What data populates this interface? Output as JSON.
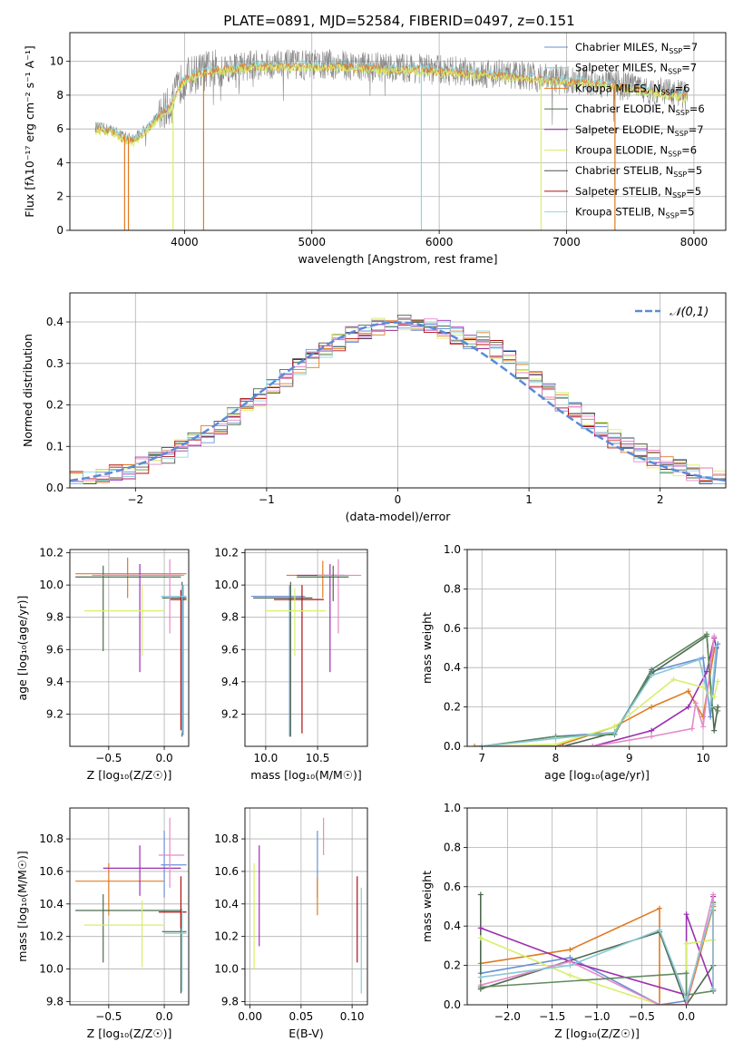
{
  "title": "PLATE=0891, MJD=52584, FIBERID=0497, z=0.151",
  "colors": {
    "s1": "#6a8fd6",
    "s2": "#8ac8d6",
    "s3": "#e07b22",
    "s4": "#4e6a4e",
    "s5": "#9b2fb0",
    "s6": "#d7ef6a",
    "s7": "#505050",
    "s8": "#b01010",
    "s9": "#8fd8e0",
    "pink": "#e48ac8",
    "green": "#5f8a5f",
    "gray": "#888888",
    "normal": "#5b8bd9"
  },
  "chart_data": [
    {
      "id": "spectrum",
      "type": "line",
      "xlabel": "wavelength [Angstrom, rest frame]",
      "ylabel": "Flux [fλ10⁻¹⁷ erg cm⁻² s⁻¹ A⁻¹]",
      "xlim": [
        3100,
        8250
      ],
      "ylim": [
        0,
        11.7
      ],
      "xticks": [
        4000,
        5000,
        6000,
        7000,
        8000
      ],
      "yticks": [
        0,
        2,
        4,
        6,
        8,
        10
      ],
      "legend_position": "right",
      "series": [
        {
          "name": "Chabrier MILES, N",
          "sub": "SSP",
          "suffix": "=7",
          "color": "#6a8fd6"
        },
        {
          "name": "Salpeter MILES, N",
          "sub": "SSP",
          "suffix": "=7",
          "color": "#8ac8d6"
        },
        {
          "name": "Kroupa MILES, N",
          "sub": "SSP",
          "suffix": "=6",
          "color": "#e07b22"
        },
        {
          "name": "Chabrier ELODIE, N",
          "sub": "SSP",
          "suffix": "=6",
          "color": "#4e6a4e"
        },
        {
          "name": "Salpeter ELODIE, N",
          "sub": "SSP",
          "suffix": "=7",
          "color": "#9b2fb0"
        },
        {
          "name": "Kroupa ELODIE, N",
          "sub": "SSP",
          "suffix": "=6",
          "color": "#d7ef6a"
        },
        {
          "name": "Chabrier STELIB, N",
          "sub": "SSP",
          "suffix": "=5",
          "color": "#505050"
        },
        {
          "name": "Salpeter STELIB, N",
          "sub": "SSP",
          "suffix": "=5",
          "color": "#b01010"
        },
        {
          "name": "Kroupa STELIB, N",
          "sub": "SSP",
          "suffix": "=5",
          "color": "#8fd8e0"
        }
      ],
      "continuum": {
        "x": [
          3300,
          3450,
          3500,
          3600,
          3700,
          3800,
          3900,
          3950,
          4000,
          4100,
          4200,
          4400,
          4600,
          4800,
          5000,
          5200,
          5400,
          5600,
          5800,
          6000,
          6200,
          6400,
          6600,
          6800,
          7000,
          7200,
          7400,
          7600,
          7800,
          7950
        ],
        "y": [
          6.1,
          5.9,
          5.6,
          5.4,
          6.0,
          6.8,
          7.5,
          8.4,
          9.0,
          9.3,
          9.5,
          9.7,
          9.8,
          9.8,
          9.8,
          9.8,
          9.7,
          9.6,
          9.6,
          9.5,
          9.4,
          9.3,
          9.2,
          9.0,
          8.9,
          8.8,
          8.6,
          8.4,
          8.1,
          8.0
        ]
      },
      "dips": [
        {
          "x": 3530,
          "color": "#e07b22"
        },
        {
          "x": 3560,
          "color": "#e07b22"
        },
        {
          "x": 3910,
          "color": "#d7ef6a"
        },
        {
          "x": 4150,
          "color": "#e07b22"
        },
        {
          "x": 5860,
          "color": "#8fd8e0"
        },
        {
          "x": 6800,
          "color": "#d7ef6a"
        },
        {
          "x": 7380,
          "color": "#e07b22"
        }
      ]
    },
    {
      "id": "residuals",
      "type": "step",
      "xlabel": "(data-model)/error",
      "ylabel": "Normed distribution",
      "xlim": [
        -2.5,
        2.5
      ],
      "ylim": [
        0,
        0.47
      ],
      "xticks": [
        -2,
        -1,
        0,
        1,
        2
      ],
      "yticks": [
        0.0,
        0.1,
        0.2,
        0.3,
        0.4
      ],
      "legend_position": "top-right",
      "normal_label": "𝒩(0,1)",
      "bin_width": 0.1
    },
    {
      "id": "age_vs_Z",
      "type": "errorbar",
      "xlabel": "Z [log₁₀(Z/Z☉)]",
      "ylabel": "age  [log₁₀(age/yr)]",
      "xlim": [
        -0.85,
        0.22
      ],
      "ylim": [
        9.0,
        10.22
      ],
      "xticks": [
        -0.5,
        0.0
      ],
      "yticks": [
        9.2,
        9.4,
        9.6,
        9.8,
        10.0,
        10.2
      ],
      "points": [
        {
          "x": 0.17,
          "y": 9.93,
          "xlo": 0.12,
          "xhi": 0.2,
          "ylo": 9.07,
          "yhi": 10.0,
          "color": "#6a8fd6"
        },
        {
          "x": 0.16,
          "y": 9.92,
          "xlo": -0.02,
          "xhi": 0.2,
          "ylo": 9.06,
          "yhi": 10.02,
          "color": "#4e6a4e"
        },
        {
          "x": 0.15,
          "y": 9.91,
          "xlo": 0.05,
          "xhi": 0.2,
          "ylo": 9.1,
          "yhi": 9.97,
          "color": "#b01010"
        },
        {
          "x": -0.33,
          "y": 10.07,
          "xlo": -0.8,
          "xhi": 0.2,
          "ylo": 9.92,
          "yhi": 10.17,
          "color": "#e07b22"
        },
        {
          "x": -0.55,
          "y": 10.05,
          "xlo": -0.8,
          "xhi": 0.15,
          "ylo": 9.59,
          "yhi": 10.12,
          "color": "#4e6a4e"
        },
        {
          "x": -0.22,
          "y": 10.06,
          "xlo": -0.55,
          "xhi": 0.15,
          "ylo": 9.46,
          "yhi": 10.13,
          "color": "#9b2fb0"
        },
        {
          "x": 0.05,
          "y": 10.06,
          "xlo": -0.65,
          "xhi": 0.18,
          "ylo": 9.7,
          "yhi": 10.16,
          "color": "#e48ac8"
        },
        {
          "x": -0.2,
          "y": 9.84,
          "xlo": -0.72,
          "xhi": 0.0,
          "ylo": 9.56,
          "yhi": 10.0,
          "color": "#d7ef6a"
        },
        {
          "x": 0.16,
          "y": 9.93,
          "xlo": -0.03,
          "xhi": 0.2,
          "ylo": 9.08,
          "yhi": 10.0,
          "color": "#8ac8d6"
        }
      ]
    },
    {
      "id": "age_vs_mass",
      "type": "errorbar",
      "xlabel": "mass [log₁₀(M/M☉)]",
      "ylabel": "",
      "xlim": [
        9.8,
        10.98
      ],
      "ylim": [
        9.0,
        10.22
      ],
      "xticks": [
        10.0,
        10.5
      ],
      "yticks": [
        9.2,
        9.4,
        9.6,
        9.8,
        10.0,
        10.2
      ],
      "points": [
        {
          "x": 10.23,
          "y": 9.93,
          "xlo": 9.86,
          "xhi": 10.38,
          "ylo": 9.06,
          "yhi": 10.0,
          "color": "#6a8fd6"
        },
        {
          "x": 10.24,
          "y": 9.92,
          "xlo": 9.88,
          "xhi": 10.45,
          "ylo": 9.06,
          "yhi": 10.02,
          "color": "#4e6a4e"
        },
        {
          "x": 10.35,
          "y": 9.91,
          "xlo": 10.08,
          "xhi": 10.56,
          "ylo": 9.08,
          "yhi": 10.0,
          "color": "#b01010"
        },
        {
          "x": 10.55,
          "y": 10.06,
          "xlo": 10.2,
          "xhi": 10.7,
          "ylo": 9.92,
          "yhi": 10.15,
          "color": "#e07b22"
        },
        {
          "x": 10.62,
          "y": 10.06,
          "xlo": 10.3,
          "xhi": 10.76,
          "ylo": 9.46,
          "yhi": 10.13,
          "color": "#9b2fb0"
        },
        {
          "x": 10.7,
          "y": 10.06,
          "xlo": 10.5,
          "xhi": 10.92,
          "ylo": 9.7,
          "yhi": 10.16,
          "color": "#e48ac8"
        },
        {
          "x": 10.28,
          "y": 9.84,
          "xlo": 10.0,
          "xhi": 10.58,
          "ylo": 9.56,
          "yhi": 9.98,
          "color": "#d7ef6a"
        },
        {
          "x": 10.65,
          "y": 10.05,
          "xlo": 10.3,
          "xhi": 10.8,
          "ylo": 9.9,
          "yhi": 10.12,
          "color": "#4e6a4e"
        }
      ]
    },
    {
      "id": "weight_vs_age",
      "type": "line",
      "xlabel": "age  [log₁₀(age/yr)]",
      "ylabel": "mass weight",
      "xlim": [
        6.8,
        10.32
      ],
      "ylim": [
        0,
        1.0
      ],
      "xticks": [
        7,
        8,
        9,
        10
      ],
      "yticks": [
        0.0,
        0.2,
        0.4,
        0.6,
        0.8,
        1.0
      ],
      "series": [
        {
          "color": "#6a8fd6",
          "x": [
            7.0,
            8.0,
            8.8,
            9.3,
            10.0,
            10.1,
            10.2
          ],
          "y": [
            0.0,
            0.05,
            0.07,
            0.38,
            0.45,
            0.15,
            0.52
          ]
        },
        {
          "color": "#e07b22",
          "x": [
            6.9,
            8.0,
            8.8,
            9.3,
            9.8,
            10.0,
            10.15
          ],
          "y": [
            0.0,
            0.0,
            0.1,
            0.2,
            0.28,
            0.15,
            0.49
          ]
        },
        {
          "color": "#4e6a4e",
          "x": [
            7.0,
            8.1,
            8.8,
            9.3,
            10.05,
            10.15,
            10.2
          ],
          "y": [
            0.0,
            0.0,
            0.07,
            0.37,
            0.56,
            0.08,
            0.2
          ]
        },
        {
          "color": "#9b2fb0",
          "x": [
            7.0,
            8.5,
            9.3,
            9.8,
            10.05,
            10.15,
            10.18
          ],
          "y": [
            0.0,
            0.0,
            0.08,
            0.2,
            0.38,
            0.55,
            0.5
          ]
        },
        {
          "color": "#d7ef6a",
          "x": [
            7.0,
            8.0,
            8.8,
            9.6,
            10.0,
            10.15,
            10.2
          ],
          "y": [
            0.0,
            0.01,
            0.1,
            0.34,
            0.3,
            0.25,
            0.33
          ]
        },
        {
          "color": "#e48ac8",
          "x": [
            7.0,
            8.5,
            9.3,
            9.85,
            9.9,
            10.0,
            10.15
          ],
          "y": [
            0.0,
            0.0,
            0.05,
            0.09,
            0.22,
            0.1,
            0.56
          ]
        },
        {
          "color": "#5f8a5f",
          "x": [
            7.0,
            8.0,
            8.8,
            9.3,
            10.05,
            10.12,
            10.2
          ],
          "y": [
            0.0,
            0.05,
            0.06,
            0.39,
            0.57,
            0.2,
            0.18
          ]
        },
        {
          "color": "#8ac8d6",
          "x": [
            7.0,
            8.0,
            8.8,
            9.3,
            9.95,
            10.1,
            10.18
          ],
          "y": [
            0.0,
            0.04,
            0.07,
            0.36,
            0.44,
            0.2,
            0.51
          ]
        }
      ]
    },
    {
      "id": "mass_vs_Z",
      "type": "errorbar",
      "xlabel": "Z [log₁₀(Z/Z☉)]",
      "ylabel": "mass [log₁₀(M/M☉)]",
      "xlim": [
        -0.85,
        0.22
      ],
      "ylim": [
        9.78,
        10.99
      ],
      "xticks": [
        -0.5,
        0.0
      ],
      "yticks": [
        9.8,
        10.0,
        10.2,
        10.4,
        10.6,
        10.8
      ],
      "points": [
        {
          "x": 0.0,
          "y": 10.64,
          "xlo": -0.03,
          "xhi": 0.2,
          "ylo": 10.44,
          "yhi": 10.85,
          "color": "#6a8fd6"
        },
        {
          "x": 0.15,
          "y": 10.23,
          "xlo": -0.02,
          "xhi": 0.2,
          "ylo": 9.85,
          "yhi": 10.37,
          "color": "#4e6a4e"
        },
        {
          "x": 0.15,
          "y": 10.35,
          "xlo": -0.05,
          "xhi": 0.2,
          "ylo": 10.25,
          "yhi": 10.57,
          "color": "#b01010"
        },
        {
          "x": -0.5,
          "y": 10.54,
          "xlo": -0.8,
          "xhi": 0.0,
          "ylo": 10.33,
          "yhi": 10.65,
          "color": "#e07b22"
        },
        {
          "x": -0.55,
          "y": 10.36,
          "xlo": -0.8,
          "xhi": 0.15,
          "ylo": 10.04,
          "yhi": 10.46,
          "color": "#4e6a4e"
        },
        {
          "x": -0.22,
          "y": 10.62,
          "xlo": -0.55,
          "xhi": 0.15,
          "ylo": 10.45,
          "yhi": 10.76,
          "color": "#9b2fb0"
        },
        {
          "x": 0.05,
          "y": 10.7,
          "xlo": -0.05,
          "xhi": 0.18,
          "ylo": 10.5,
          "yhi": 10.93,
          "color": "#e48ac8"
        },
        {
          "x": -0.2,
          "y": 10.27,
          "xlo": -0.72,
          "xhi": 0.0,
          "ylo": 10.01,
          "yhi": 10.42,
          "color": "#d7ef6a"
        },
        {
          "x": 0.16,
          "y": 10.22,
          "xlo": 0.0,
          "xhi": 0.2,
          "ylo": 9.86,
          "yhi": 10.37,
          "color": "#8ac8d6"
        }
      ]
    },
    {
      "id": "mass_vs_EBV",
      "type": "errorbar",
      "xlabel": "E(B-V)",
      "ylabel": "",
      "xlim": [
        -0.005,
        0.115
      ],
      "ylim": [
        9.78,
        10.99
      ],
      "xticks": [
        0.0,
        0.05,
        0.1
      ],
      "yticks": [
        9.8,
        10.0,
        10.2,
        10.4,
        10.6,
        10.8
      ],
      "points": [
        {
          "x": 0.004,
          "y": 10.3,
          "xlo": 0.004,
          "xhi": 0.004,
          "ylo": 10.0,
          "yhi": 10.65,
          "color": "#d7ef6a"
        },
        {
          "x": 0.009,
          "y": 10.45,
          "xlo": 0.009,
          "xhi": 0.009,
          "ylo": 10.14,
          "yhi": 10.76,
          "color": "#9b2fb0"
        },
        {
          "x": 0.066,
          "y": 10.64,
          "xlo": 0.066,
          "xhi": 0.066,
          "ylo": 10.44,
          "yhi": 10.85,
          "color": "#6a8fd6"
        },
        {
          "x": 0.066,
          "y": 10.44,
          "xlo": 0.066,
          "xhi": 0.066,
          "ylo": 10.33,
          "yhi": 10.56,
          "color": "#e07b22"
        },
        {
          "x": 0.072,
          "y": 10.81,
          "xlo": 0.072,
          "xhi": 0.072,
          "ylo": 10.7,
          "yhi": 10.93,
          "color": "#e48ac8"
        },
        {
          "x": 0.105,
          "y": 10.3,
          "xlo": 0.105,
          "xhi": 0.105,
          "ylo": 10.04,
          "yhi": 10.57,
          "color": "#b01010"
        },
        {
          "x": 0.109,
          "y": 10.2,
          "xlo": 0.109,
          "xhi": 0.109,
          "ylo": 9.85,
          "yhi": 10.5,
          "color": "#8ac8d6"
        }
      ]
    },
    {
      "id": "weight_vs_Z",
      "type": "line",
      "xlabel": "Z [log₁₀(Z/Z☉)]",
      "ylabel": "mass weight",
      "xlim": [
        -2.45,
        0.45
      ],
      "ylim": [
        0,
        1.0
      ],
      "xticks": [
        -2.0,
        -1.5,
        -1.0,
        -0.5,
        0.0
      ],
      "yticks": [
        0.0,
        0.2,
        0.4,
        0.6,
        0.8,
        1.0
      ],
      "series": [
        {
          "color": "#6a8fd6",
          "x": [
            -2.3,
            -1.3,
            -0.3,
            0.0,
            0.3,
            0.3
          ],
          "y": [
            0.16,
            0.24,
            0.0,
            0.02,
            0.5,
            0.07
          ]
        },
        {
          "color": "#e07b22",
          "x": [
            -2.3,
            -1.3,
            -0.3,
            -0.3,
            0.0,
            0.3
          ],
          "y": [
            0.21,
            0.28,
            0.49,
            0.0,
            0.0,
            0.5
          ]
        },
        {
          "color": "#4e6a4e",
          "x": [
            -2.3,
            -2.3,
            -0.3,
            0.0,
            0.3,
            0.3
          ],
          "y": [
            0.56,
            0.08,
            0.37,
            0.0,
            0.2,
            0.52
          ]
        },
        {
          "color": "#9b2fb0",
          "x": [
            -2.3,
            -1.3,
            0.0,
            0.0,
            0.3,
            0.3
          ],
          "y": [
            0.39,
            0.22,
            0.05,
            0.46,
            0.08,
            0.55
          ]
        },
        {
          "color": "#d7ef6a",
          "x": [
            -2.3,
            -1.3,
            -0.3,
            0.0,
            0.0,
            0.3
          ],
          "y": [
            0.34,
            0.15,
            0.0,
            0.0,
            0.31,
            0.33
          ]
        },
        {
          "color": "#e48ac8",
          "x": [
            -2.3,
            -1.3,
            -0.3,
            0.0,
            0.3,
            0.3
          ],
          "y": [
            0.1,
            0.22,
            0.0,
            0.0,
            0.56,
            0.07
          ]
        },
        {
          "color": "#5f8a5f",
          "x": [
            -2.3,
            0.0,
            0.0,
            0.3,
            0.3,
            0.3
          ],
          "y": [
            0.09,
            0.16,
            0.05,
            0.07,
            0.2,
            0.48
          ]
        },
        {
          "color": "#8ac8d6",
          "x": [
            -2.3,
            -1.3,
            -0.3,
            0.0,
            0.3,
            0.3
          ],
          "y": [
            0.14,
            0.2,
            0.38,
            0.03,
            0.51,
            0.08
          ]
        }
      ]
    }
  ]
}
